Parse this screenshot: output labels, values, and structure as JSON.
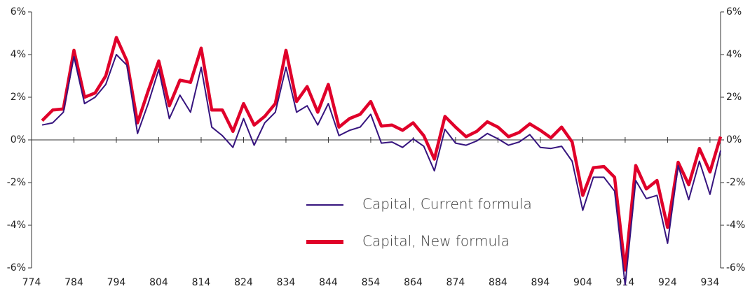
{
  "chart_data": {
    "type": "line",
    "x": [
      776.5,
      779,
      781.5,
      784,
      786.5,
      789,
      791.5,
      794,
      796.5,
      799,
      801.5,
      804,
      806.5,
      809,
      811.5,
      814,
      816.5,
      819,
      821.5,
      824,
      826.5,
      829,
      831.5,
      834,
      836.5,
      839,
      841.5,
      844,
      846.5,
      849,
      851.5,
      854,
      856.5,
      859,
      861.5,
      864,
      866.5,
      869,
      871.5,
      874,
      876.5,
      879,
      881.5,
      884,
      886.5,
      889,
      891.5,
      894,
      896.5,
      899,
      901.5,
      904,
      906.5,
      909,
      911.5,
      914,
      916.5,
      919,
      921.5,
      924,
      926.5,
      929,
      931.5,
      934,
      936.5
    ],
    "series": [
      {
        "name": "Capital, Current formula",
        "color": "#36147e",
        "values": [
          0.7,
          0.8,
          1.3,
          3.9,
          1.7,
          2.0,
          2.6,
          4.0,
          3.5,
          0.3,
          1.7,
          3.3,
          1.0,
          2.1,
          1.3,
          3.4,
          0.6,
          0.2,
          -0.35,
          1.0,
          -0.25,
          0.8,
          1.3,
          3.4,
          1.3,
          1.6,
          0.7,
          1.7,
          0.2,
          0.45,
          0.6,
          1.2,
          -0.15,
          -0.1,
          -0.35,
          0.05,
          -0.3,
          -1.45,
          0.5,
          -0.15,
          -0.25,
          -0.05,
          0.3,
          0.05,
          -0.25,
          -0.1,
          0.25,
          -0.35,
          -0.4,
          -0.3,
          -1.0,
          -3.3,
          -1.75,
          -1.75,
          -2.4,
          -6.8,
          -1.9,
          -2.75,
          -2.6,
          -4.85,
          -1.2,
          -2.8,
          -1.0,
          -2.55,
          -0.5
        ]
      },
      {
        "name": "Capital, New formula",
        "color": "#e0002a",
        "values": [
          0.9,
          1.4,
          1.45,
          4.2,
          2.0,
          2.2,
          3.0,
          4.8,
          3.7,
          0.8,
          2.3,
          3.7,
          1.6,
          2.8,
          2.7,
          4.3,
          1.4,
          1.4,
          0.4,
          1.7,
          0.7,
          1.1,
          1.7,
          4.2,
          1.8,
          2.5,
          1.3,
          2.6,
          0.6,
          1.0,
          1.2,
          1.8,
          0.65,
          0.7,
          0.45,
          0.8,
          0.2,
          -0.9,
          1.1,
          0.6,
          0.15,
          0.4,
          0.85,
          0.6,
          0.15,
          0.35,
          0.75,
          0.45,
          0.1,
          0.6,
          -0.1,
          -2.6,
          -1.3,
          -1.25,
          -1.75,
          -6.1,
          -1.2,
          -2.3,
          -1.9,
          -4.1,
          -1.05,
          -2.1,
          -0.4,
          -1.5,
          0.15
        ]
      }
    ],
    "xlim": [
      774,
      936.5
    ],
    "xticks": [
      774,
      784,
      794,
      804,
      814,
      824,
      834,
      844,
      854,
      864,
      874,
      884,
      894,
      904,
      914,
      924,
      934
    ],
    "ylim": [
      -6,
      6
    ],
    "yticks": [
      {
        "value": -6,
        "label": "-6%"
      },
      {
        "value": -4,
        "label": "-4%"
      },
      {
        "value": -2,
        "label": "-2%"
      },
      {
        "value": 0,
        "label": "0%"
      },
      {
        "value": 2,
        "label": "2%"
      },
      {
        "value": 4,
        "label": "4%"
      },
      {
        "value": 6,
        "label": "6%"
      }
    ]
  }
}
